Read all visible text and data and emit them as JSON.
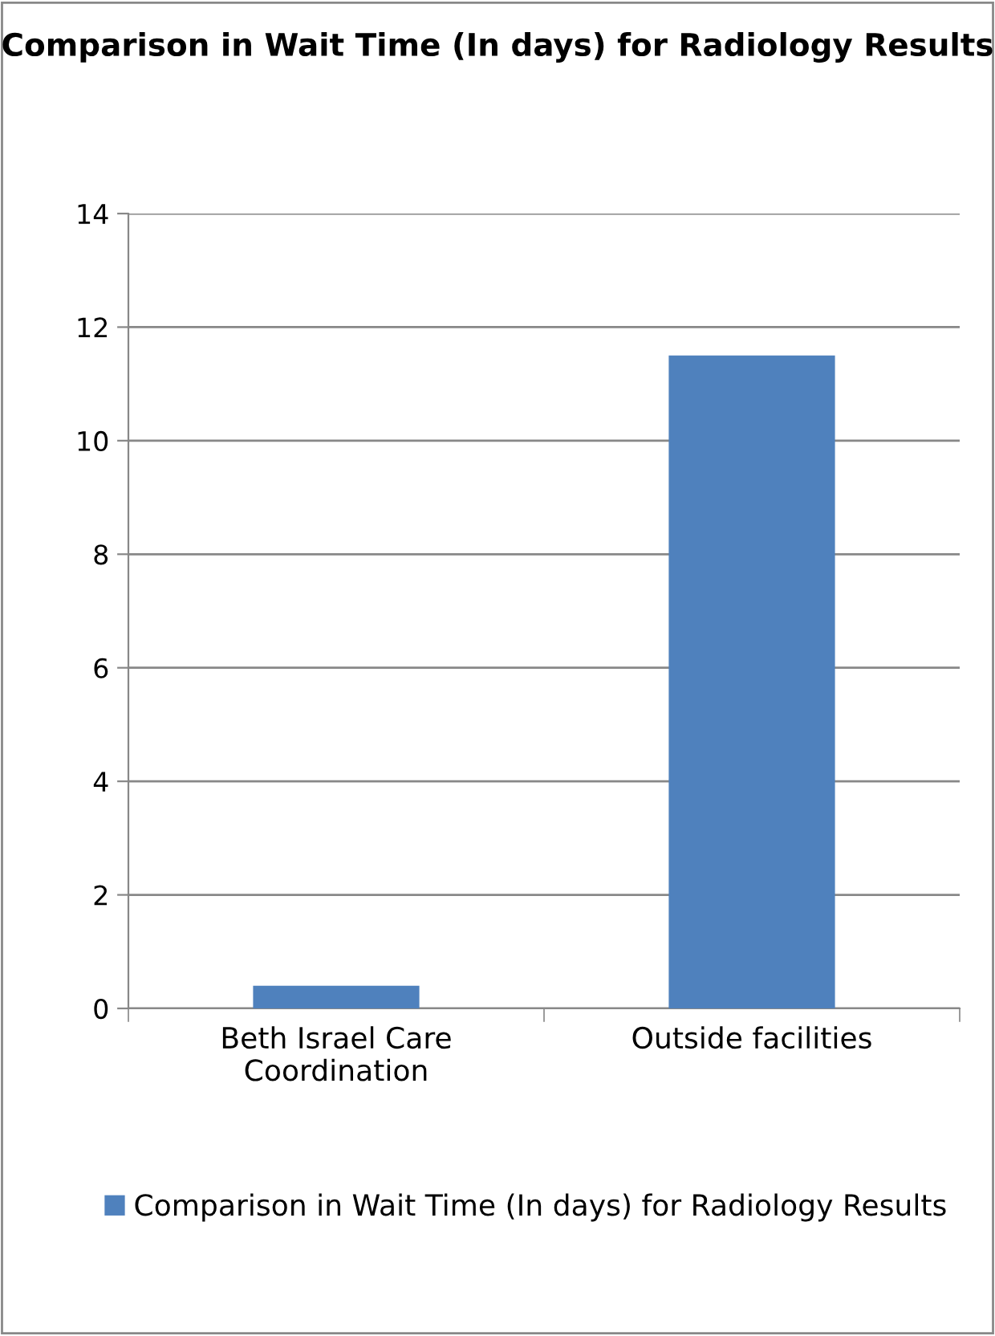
{
  "chart_data": {
    "type": "bar",
    "title": "Comparison in Wait Time (In days) for Radiology Results",
    "categories": [
      "Beth Israel Care\nCoordination",
      "Outside facilities"
    ],
    "series": [
      {
        "name": "Comparison in Wait Time (In days) for Radiology Results",
        "color": "#4f81bd",
        "values": [
          0.4,
          11.5
        ]
      }
    ],
    "ylim": [
      0,
      14
    ],
    "yticks": [
      0,
      2,
      4,
      6,
      8,
      10,
      12,
      14
    ],
    "grid": "y",
    "legend": "bottom"
  }
}
